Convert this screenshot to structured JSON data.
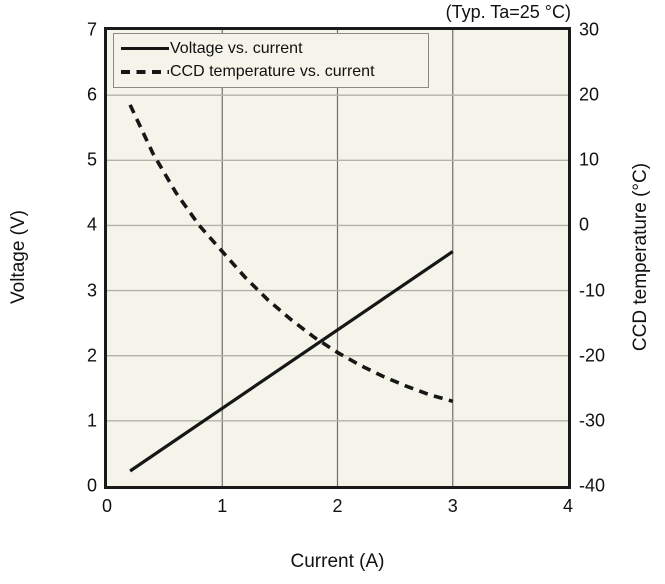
{
  "annotation": "(Typ. Ta=25 °C)",
  "colors": {
    "page_bg": "#ffffff",
    "plot_bg": "#f5f4ea",
    "plot_border": "#1a1a1a",
    "grid_vertical": "#6f6f68",
    "grid_horizontal": "#b2b2a9",
    "line": "#161616",
    "text": "#111111",
    "legend_border": "#8b8b85"
  },
  "chart_data": {
    "type": "line",
    "title": "(Typ. Ta=25 °C)",
    "xlabel": "Current (A)",
    "ylabel_left": "Voltage (V)",
    "ylabel_right": "CCD temperature (°C)",
    "xlim": [
      0,
      4
    ],
    "ylim_left": [
      0,
      7
    ],
    "ylim_right": [
      -40,
      30
    ],
    "x_ticks": [
      "0",
      "1",
      "2",
      "3",
      "4"
    ],
    "y_left_ticks": [
      "0",
      "1",
      "2",
      "3",
      "4",
      "5",
      "6",
      "7"
    ],
    "y_right_ticks": [
      "-40",
      "-30",
      "-20",
      "-10",
      "0",
      "10",
      "20",
      "30"
    ],
    "grid": true,
    "legend_position": "top-left",
    "series": [
      {
        "id": "voltage-line",
        "name": "Voltage vs. current",
        "axis": "left",
        "style": "solid",
        "points": [
          [
            0.2,
            0.23
          ],
          [
            3.0,
            3.6
          ]
        ]
      },
      {
        "id": "ccd-temperature-curve",
        "name": "CCD temperature vs. current",
        "axis": "right",
        "style": "dashed",
        "points": [
          [
            0.2,
            18.5
          ],
          [
            0.4,
            11
          ],
          [
            0.6,
            5
          ],
          [
            0.8,
            0
          ],
          [
            1.0,
            -4
          ],
          [
            1.2,
            -8
          ],
          [
            1.4,
            -11.5
          ],
          [
            1.6,
            -14.5
          ],
          [
            1.8,
            -17.2
          ],
          [
            2.0,
            -19.5
          ],
          [
            2.2,
            -21.5
          ],
          [
            2.4,
            -23.2
          ],
          [
            2.6,
            -24.7
          ],
          [
            2.8,
            -26
          ],
          [
            3.0,
            -27
          ]
        ]
      }
    ]
  }
}
